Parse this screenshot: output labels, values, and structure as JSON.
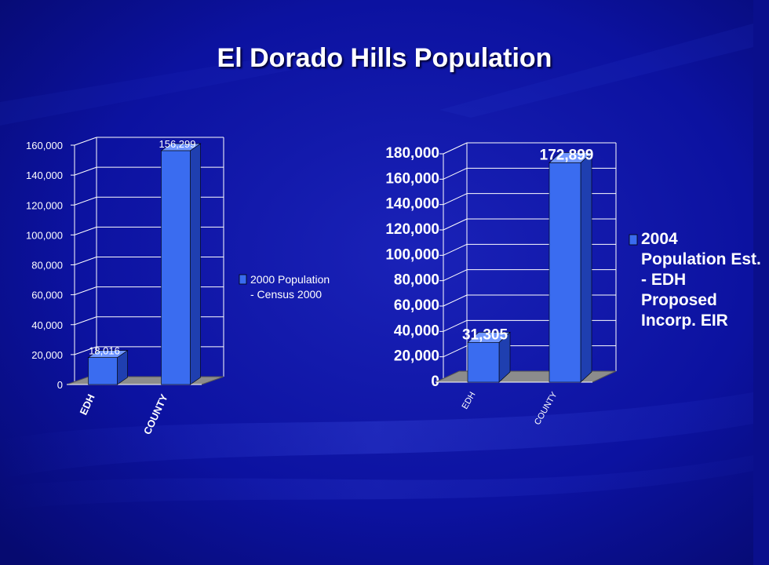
{
  "slide": {
    "title": "El Dorado Hills Population"
  },
  "chart_data": [
    {
      "type": "bar",
      "categories": [
        "EDH",
        "COUNTY"
      ],
      "series": [
        {
          "name": "2000 Population - Census 2000",
          "values": [
            18016,
            156299
          ]
        }
      ],
      "data_labels": [
        "18,016",
        "156,299"
      ],
      "y_ticks": [
        "0",
        "20,000",
        "40,000",
        "60,000",
        "80,000",
        "100,000",
        "120,000",
        "140,000",
        "160,000"
      ],
      "ylim": [
        0,
        160000
      ],
      "legend_lines": [
        "2000 Population",
        "- Census 2000"
      ],
      "legend_position": "right",
      "grid": true
    },
    {
      "type": "bar",
      "categories": [
        "EDH",
        "COUNTY"
      ],
      "series": [
        {
          "name": "2004 Population Est. - EDH Proposed Incorp. EIR",
          "values": [
            31305,
            172899
          ]
        }
      ],
      "data_labels": [
        "31,305",
        "172,899"
      ],
      "y_ticks": [
        "0",
        "20,000",
        "40,000",
        "60,000",
        "80,000",
        "100,000",
        "120,000",
        "140,000",
        "160,000",
        "180,000"
      ],
      "ylim": [
        0,
        180000
      ],
      "legend_lines": [
        "2004",
        "Population Est.",
        "- EDH",
        "Proposed",
        "Incorp. EIR"
      ],
      "legend_position": "right",
      "grid": true
    }
  ],
  "colors": {
    "background": "#0a0f8c",
    "bar_front": "#3a6cf0",
    "bar_side": "#1f3fb0",
    "bar_top": "#6f96ff",
    "floor": "#8c8c8c",
    "text": "#ffffff"
  }
}
